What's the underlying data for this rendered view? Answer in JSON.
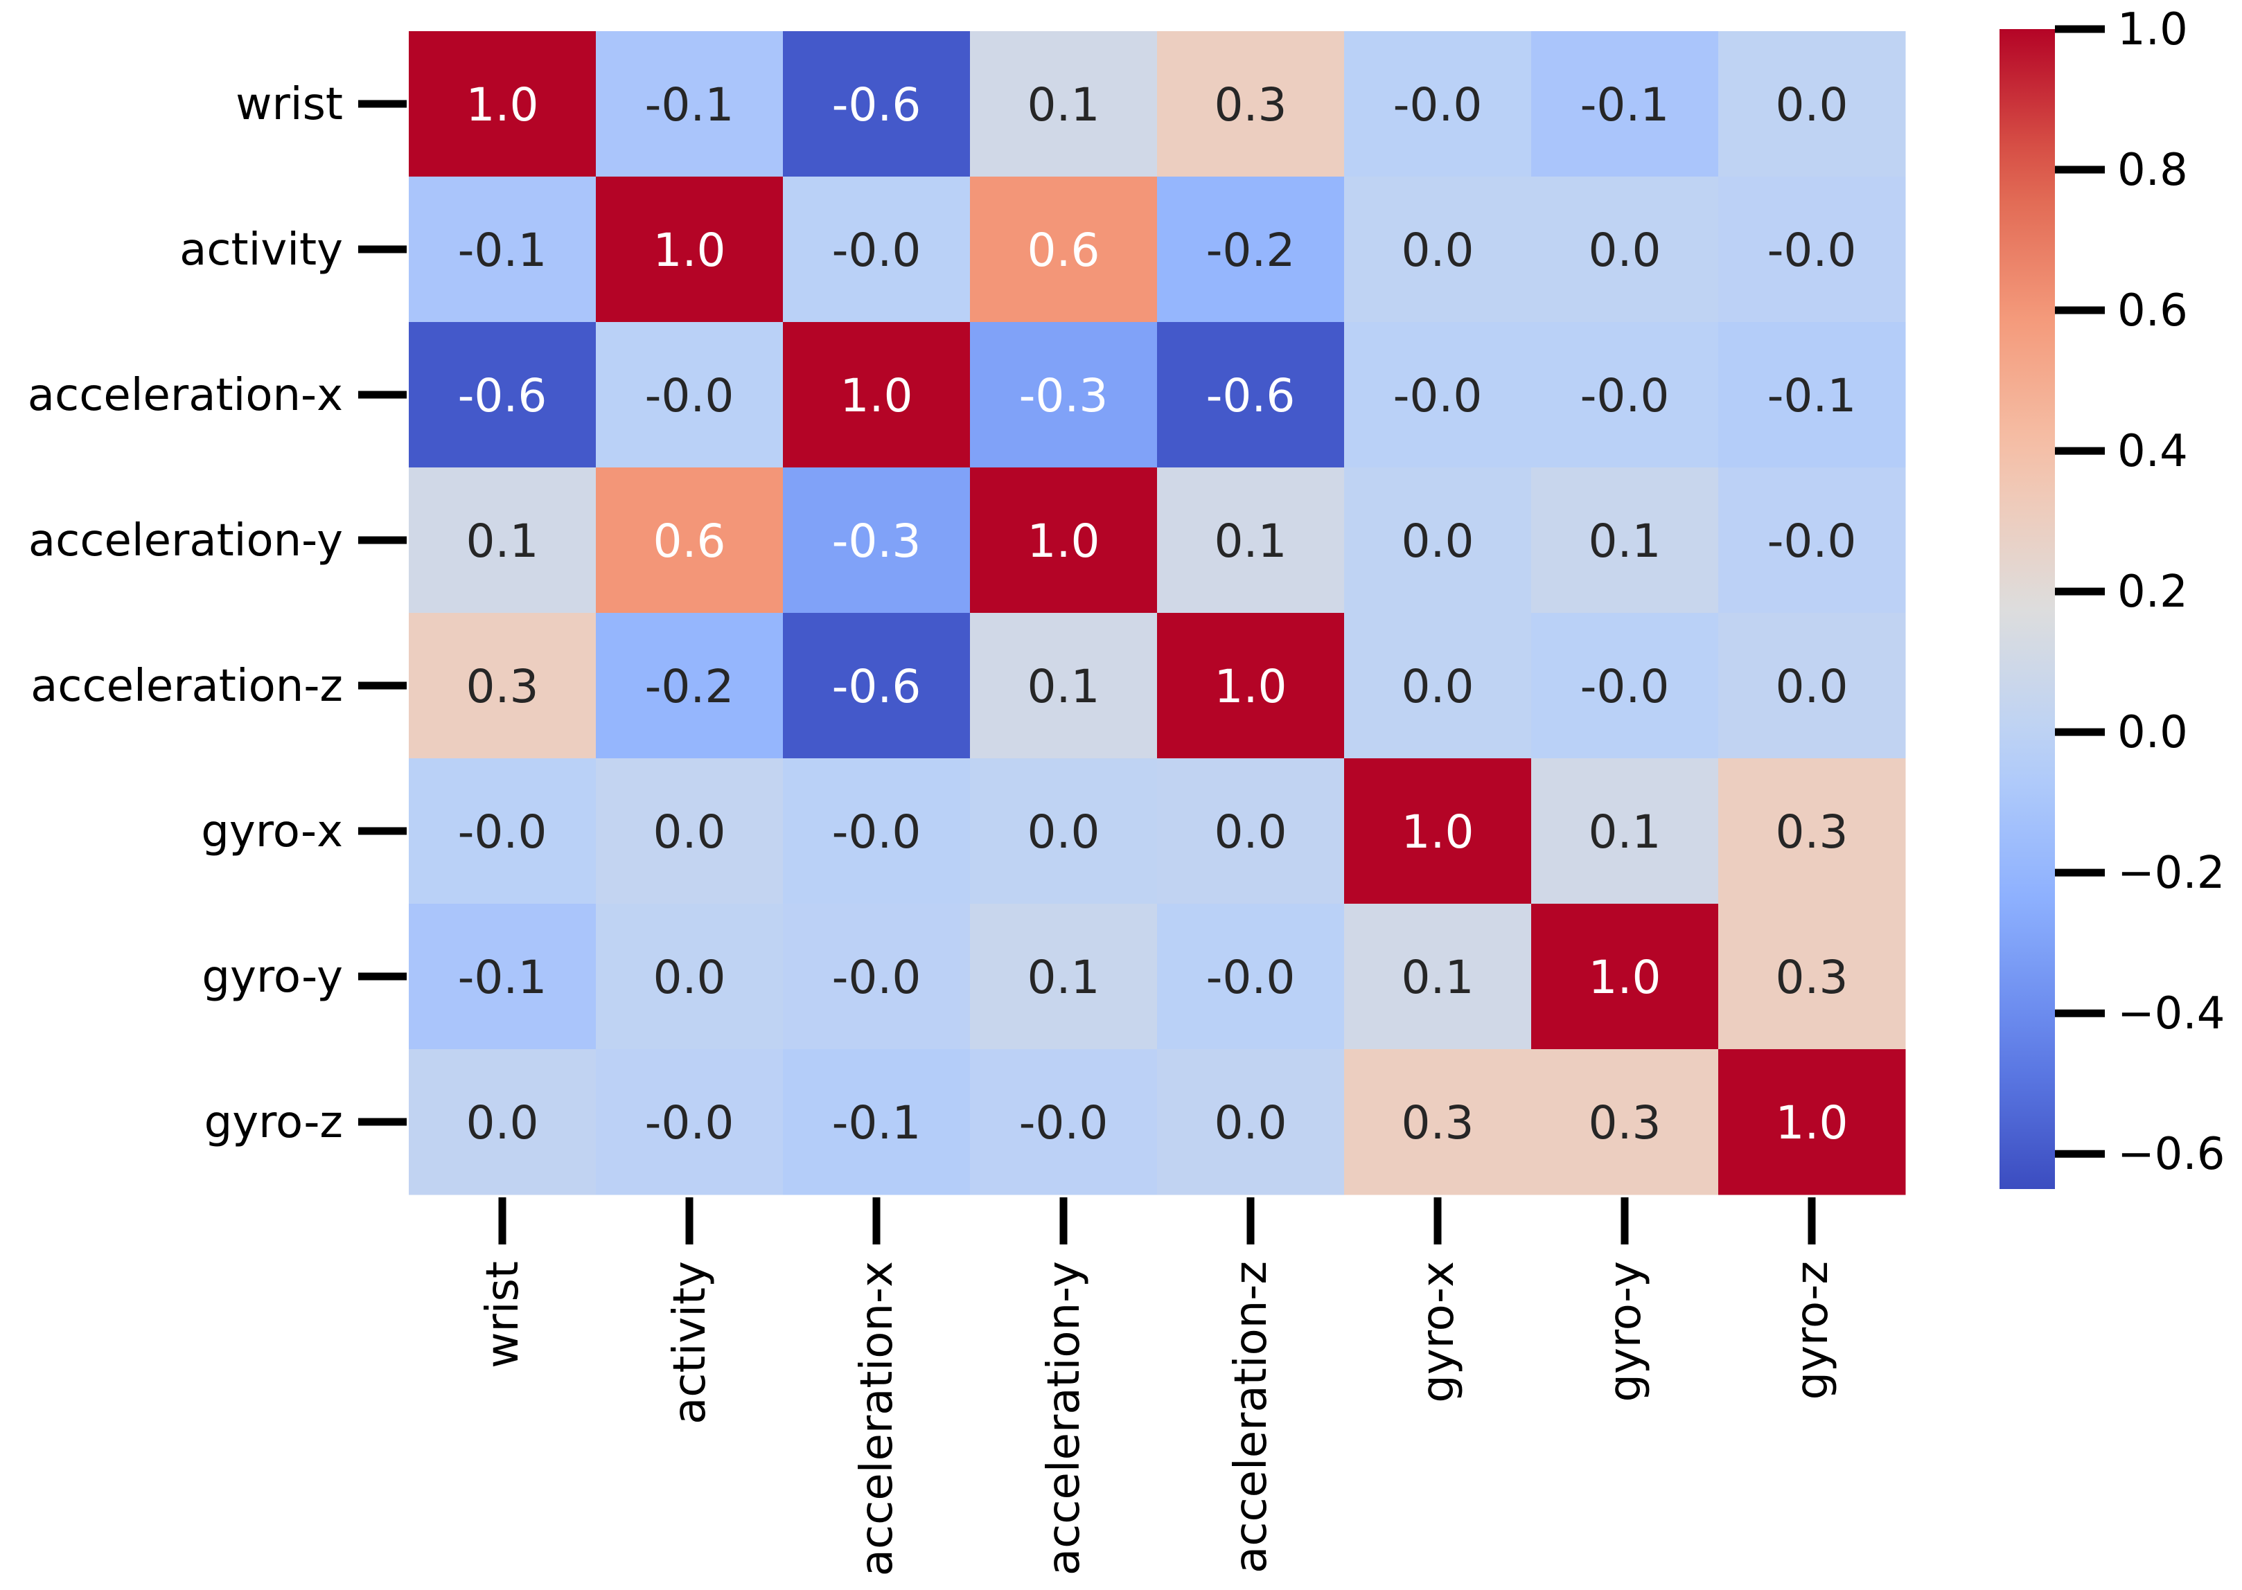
{
  "chart_data": {
    "type": "heatmap",
    "title": "",
    "xlabel": "",
    "ylabel": "",
    "rows": [
      "wrist",
      "activity",
      "acceleration-x",
      "acceleration-y",
      "acceleration-z",
      "gyro-x",
      "gyro-y",
      "gyro-z"
    ],
    "columns": [
      "wrist",
      "activity",
      "acceleration-x",
      "acceleration-y",
      "acceleration-z",
      "gyro-x",
      "gyro-y",
      "gyro-z"
    ],
    "values": [
      [
        1.0,
        -0.1,
        -0.6,
        0.1,
        0.3,
        -0.02,
        -0.1,
        0.01
      ],
      [
        -0.1,
        1.0,
        -0.02,
        0.6,
        -0.2,
        0.01,
        0.01,
        -0.01
      ],
      [
        -0.6,
        -0.02,
        1.0,
        -0.3,
        -0.6,
        -0.02,
        -0.02,
        -0.05
      ],
      [
        0.1,
        0.6,
        -0.3,
        1.0,
        0.1,
        0.01,
        0.06,
        -0.01
      ],
      [
        0.3,
        -0.2,
        -0.6,
        0.1,
        1.0,
        0.01,
        -0.02,
        0.02
      ],
      [
        -0.02,
        0.03,
        -0.02,
        0.01,
        0.02,
        1.0,
        0.1,
        0.3
      ],
      [
        -0.1,
        0.01,
        -0.01,
        0.06,
        -0.02,
        0.1,
        1.0,
        0.3
      ],
      [
        0.02,
        -0.01,
        -0.05,
        -0.01,
        0.02,
        0.3,
        0.3,
        1.0
      ]
    ],
    "annotations": [
      [
        "1.0",
        "-0.1",
        "-0.6",
        "0.1",
        "0.3",
        "-0.0",
        "-0.1",
        "0.0"
      ],
      [
        "-0.1",
        "1.0",
        "-0.0",
        "0.6",
        "-0.2",
        "0.0",
        "0.0",
        "-0.0"
      ],
      [
        "-0.6",
        "-0.0",
        "1.0",
        "-0.3",
        "-0.6",
        "-0.0",
        "-0.0",
        "-0.1"
      ],
      [
        "0.1",
        "0.6",
        "-0.3",
        "1.0",
        "0.1",
        "0.0",
        "0.1",
        "-0.0"
      ],
      [
        "0.3",
        "-0.2",
        "-0.6",
        "0.1",
        "1.0",
        "0.0",
        "-0.0",
        "0.0"
      ],
      [
        "-0.0",
        "0.0",
        "-0.0",
        "0.0",
        "0.0",
        "1.0",
        "0.1",
        "0.3"
      ],
      [
        "-0.1",
        "0.0",
        "-0.0",
        "0.1",
        "-0.0",
        "0.1",
        "1.0",
        "0.3"
      ],
      [
        "0.0",
        "-0.0",
        "-0.1",
        "-0.0",
        "0.0",
        "0.3",
        "0.3",
        "1.0"
      ]
    ],
    "colormap": "coolwarm",
    "vmin": -0.65,
    "vmax": 1.0,
    "colorbar": {
      "ticks": [
        1.0,
        0.8,
        0.6,
        0.4,
        0.2,
        0.0,
        -0.2,
        -0.4,
        -0.6
      ],
      "tick_labels": [
        "1.0",
        "0.8",
        "0.6",
        "0.4",
        "0.2",
        "0.0",
        "−0.2",
        "−0.4",
        "−0.6"
      ]
    },
    "grid": false,
    "legend": "colorbar-right"
  }
}
